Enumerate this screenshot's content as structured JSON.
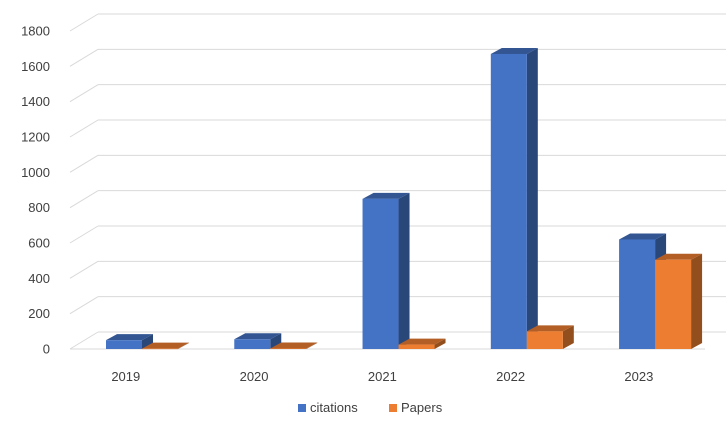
{
  "chart_data": {
    "type": "bar",
    "title": "",
    "xlabel": "",
    "ylabel": "",
    "categories": [
      "2019",
      "2020",
      "2021",
      "2022",
      "2023"
    ],
    "series": [
      {
        "name": "citations",
        "values": [
          50,
          55,
          850,
          1670,
          620
        ],
        "color": "#4472C4"
      },
      {
        "name": "Papers",
        "values": [
          2,
          3,
          25,
          100,
          505
        ],
        "color": "#ED7D31"
      }
    ],
    "ylim": [
      0,
      1800
    ],
    "yticks": [
      "0",
      "200",
      "400",
      "600",
      "800",
      "1000",
      "1200",
      "1400",
      "1600",
      "1800"
    ],
    "grid": true,
    "legend_position": "bottom",
    "style": "3d-clustered-column"
  }
}
